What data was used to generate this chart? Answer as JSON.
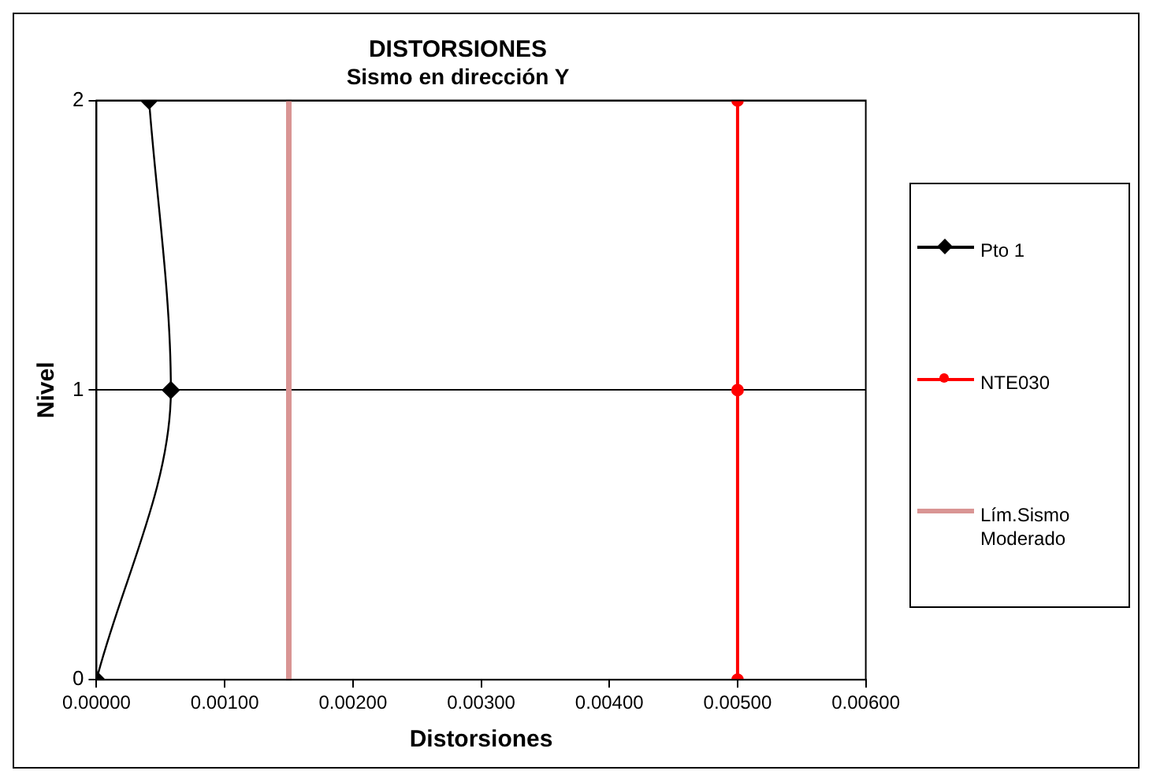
{
  "chart_data": {
    "type": "line",
    "title": "DISTORSIONES",
    "subtitle": "Sismo en dirección Y",
    "xlabel": "Distorsiones",
    "ylabel": "Nivel",
    "series": [
      {
        "name": "Pto 1",
        "color": "#000000",
        "marker": "diamond",
        "x": [
          0,
          0.00058,
          0.00041
        ],
        "values": [
          0,
          1,
          2
        ]
      },
      {
        "name": "NTE030",
        "color": "#ff0000",
        "marker": "circle",
        "x": [
          0.005,
          0.005,
          0.005
        ],
        "values": [
          0,
          1,
          2
        ]
      },
      {
        "name": "Lím.Sismo Moderado",
        "color": "#d99594",
        "marker": "none",
        "x": [
          0.0015,
          0.0015,
          0.0015
        ],
        "values": [
          0,
          1,
          2
        ]
      }
    ],
    "xlim": [
      0,
      0.006
    ],
    "xticks": [
      {
        "value": 0,
        "label": "0.00000"
      },
      {
        "value": 0.001,
        "label": "0.00100"
      },
      {
        "value": 0.002,
        "label": "0.00200"
      },
      {
        "value": 0.003,
        "label": "0.00300"
      },
      {
        "value": 0.004,
        "label": "0.00400"
      },
      {
        "value": 0.005,
        "label": "0.00500"
      },
      {
        "value": 0.006,
        "label": "0.00600"
      }
    ],
    "ylim": [
      0,
      2
    ],
    "yticks": [
      0,
      1,
      2
    ],
    "grid": "y",
    "legend": "right"
  }
}
